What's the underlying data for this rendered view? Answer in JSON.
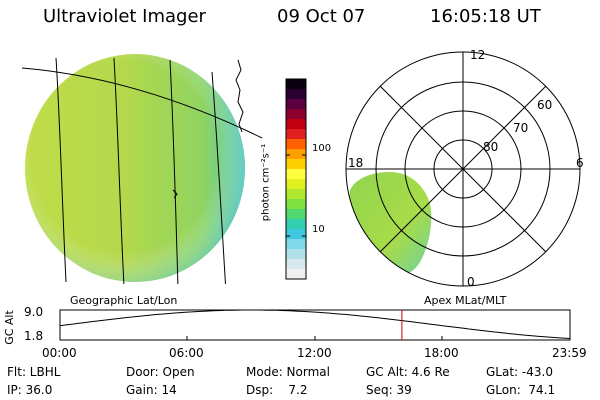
{
  "header": {
    "instrument": "Ultraviolet Imager",
    "date": "09 Oct 07",
    "time": "16:05:18 UT"
  },
  "colorbar": {
    "unit_label": "photon cm⁻²s⁻¹",
    "tick_labels": [
      "100",
      "10"
    ],
    "colors_top_to_bottom": [
      "#0a0010",
      "#2a0030",
      "#5a0040",
      "#8c0030",
      "#c00010",
      "#e02020",
      "#ff6000",
      "#ffa000",
      "#ffd000",
      "#ffff40",
      "#e0f020",
      "#b0e830",
      "#80e040",
      "#50d870",
      "#30d0b0",
      "#40c8e0",
      "#80d8e8",
      "#b0e0e8",
      "#d8e8ec",
      "#f0f0f0"
    ]
  },
  "left_panel": {
    "caption": "Geographic Lat/Lon"
  },
  "right_panel": {
    "caption": "Apex MLat/MLT",
    "mlt_labels": [
      "12",
      "18",
      "6",
      "0"
    ],
    "lat_labels": [
      "60",
      "70",
      "80"
    ]
  },
  "altitude_plot": {
    "ylabel": "GC Alt",
    "y_max_label": "9.0",
    "y_min_label": "1.8",
    "y_range": [
      1.8,
      9.0
    ],
    "x_labels": [
      "00:00",
      "06:00",
      "12:00",
      "18:00",
      "23:59"
    ],
    "current_time_hours": 16.09,
    "current_time_color": "#cc0000"
  },
  "status": {
    "rows": [
      [
        "Flt: LBHL",
        "Door: Open",
        "Mode: Normal",
        "GC Alt: 4.6 Re",
        "GLat: -43.0"
      ],
      [
        "IP: 36.0",
        "Gain: 14",
        "Dsp:    7.2",
        "Seq: 39",
        "GLon:  74.1"
      ]
    ]
  },
  "colors": {
    "aurora_green": "#a8d850",
    "aurora_yellow": "#c8e040",
    "aurora_cyan": "#60d0c0",
    "background": "#ffffff"
  }
}
